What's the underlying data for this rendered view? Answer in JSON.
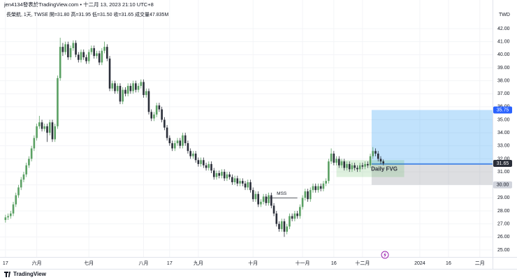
{
  "chart_data": {
    "type": "candlestick",
    "header": "jen4134發表於TradingView.com • 十二月 13, 2023 21:10 UTC+8",
    "subtitle": "長榮航, 1天, TWSE 開=31.80 高=31.95 低=31.50 收=31.65 成交量47.835M",
    "currency": "TWD",
    "footer": "TradingView",
    "up_color": "#5aa063",
    "down_color": "#2a2e39",
    "grid": true,
    "xlim": [
      -2.1,
      186.9
    ],
    "xticks": [
      {
        "value": 0,
        "label": "17"
      },
      {
        "value": 12,
        "label": "六月"
      },
      {
        "value": 32,
        "label": "七月"
      },
      {
        "value": 53,
        "label": "八月"
      },
      {
        "value": 63,
        "label": "17"
      },
      {
        "value": 74,
        "label": "九月"
      },
      {
        "value": 95,
        "label": "十月"
      },
      {
        "value": 114,
        "label": "十一月"
      },
      {
        "value": 126,
        "label": "16"
      },
      {
        "value": 137,
        "label": "十二月"
      },
      {
        "value": 159,
        "label": "2024"
      },
      {
        "value": 170,
        "label": "16"
      },
      {
        "value": 182,
        "label": "二月"
      }
    ],
    "ylim": [
      24.46,
      44.2
    ],
    "yticks": [
      {
        "value": 25,
        "label": "25.00"
      },
      {
        "value": 26,
        "label": "26.00"
      },
      {
        "value": 27,
        "label": "27.00"
      },
      {
        "value": 28,
        "label": "28.00"
      },
      {
        "value": 29,
        "label": "29.00"
      },
      {
        "value": 30,
        "label": "30.00"
      },
      {
        "value": 31,
        "label": "31.00"
      },
      {
        "value": 32,
        "label": "32.00"
      },
      {
        "value": 33,
        "label": "33.00"
      },
      {
        "value": 34,
        "label": "34.00"
      },
      {
        "value": 35,
        "label": "35.00"
      },
      {
        "value": 36,
        "label": "36.00"
      },
      {
        "value": 37,
        "label": "37.00"
      },
      {
        "value": 38,
        "label": "38.00"
      },
      {
        "value": 39,
        "label": "39.00"
      },
      {
        "value": 40,
        "label": "40.00"
      },
      {
        "value": 41,
        "label": "41.00"
      },
      {
        "value": 42,
        "label": "42.00"
      }
    ],
    "candles": [
      [
        27.3,
        27.7,
        27.1,
        27.5
      ],
      [
        27.5,
        27.8,
        27.3,
        27.6
      ],
      [
        27.6,
        28.0,
        27.4,
        27.8
      ],
      [
        27.8,
        28.7,
        27.6,
        28.5
      ],
      [
        28.5,
        29.4,
        28.3,
        29.2
      ],
      [
        29.2,
        30.0,
        29.0,
        29.8
      ],
      [
        29.8,
        30.6,
        29.6,
        30.4
      ],
      [
        30.4,
        31.0,
        30.2,
        30.8
      ],
      [
        30.8,
        31.7,
        30.6,
        31.5
      ],
      [
        31.5,
        32.2,
        31.3,
        32.0
      ],
      [
        32.0,
        33.0,
        31.8,
        32.8
      ],
      [
        32.8,
        33.8,
        32.6,
        33.6
      ],
      [
        33.6,
        34.7,
        33.4,
        34.5
      ],
      [
        34.5,
        35.3,
        34.3,
        34.8
      ],
      [
        34.8,
        35.0,
        34.1,
        34.3
      ],
      [
        34.3,
        34.7,
        34.1,
        34.5
      ],
      [
        34.5,
        34.7,
        33.3,
        34.0
      ],
      [
        34.0,
        35.0,
        33.8,
        34.8
      ],
      [
        34.8,
        35.0,
        33.3,
        33.5
      ],
      [
        33.5,
        34.7,
        33.3,
        34.5
      ],
      [
        34.5,
        38.4,
        34.3,
        38.2
      ],
      [
        38.2,
        41.3,
        38.0,
        40.6
      ],
      [
        40.6,
        40.9,
        39.9,
        40.2
      ],
      [
        40.2,
        41.0,
        40.0,
        40.8
      ],
      [
        40.8,
        41.0,
        39.6,
        39.8
      ],
      [
        39.8,
        40.7,
        39.6,
        40.5
      ],
      [
        40.5,
        41.1,
        40.3,
        40.9
      ],
      [
        40.9,
        41.1,
        39.8,
        40.0
      ],
      [
        40.0,
        40.2,
        39.4,
        39.6
      ],
      [
        39.6,
        40.4,
        39.4,
        40.2
      ],
      [
        40.2,
        40.4,
        39.6,
        39.8
      ],
      [
        39.8,
        40.0,
        39.3,
        39.5
      ],
      [
        39.5,
        40.4,
        39.3,
        40.2
      ],
      [
        40.2,
        40.7,
        40.0,
        40.5
      ],
      [
        40.5,
        40.7,
        39.7,
        39.9
      ],
      [
        39.9,
        40.3,
        39.7,
        40.1
      ],
      [
        40.1,
        40.3,
        39.2,
        39.4
      ],
      [
        39.4,
        40.5,
        39.2,
        40.3
      ],
      [
        40.3,
        41.0,
        40.1,
        40.6
      ],
      [
        40.6,
        40.8,
        39.5,
        39.7
      ],
      [
        39.7,
        39.9,
        37.2,
        37.4
      ],
      [
        37.4,
        38.0,
        37.2,
        37.8
      ],
      [
        37.8,
        38.0,
        37.0,
        37.2
      ],
      [
        37.2,
        37.8,
        37.0,
        37.6
      ],
      [
        37.6,
        37.8,
        36.2,
        36.4
      ],
      [
        36.4,
        37.5,
        36.2,
        37.3
      ],
      [
        37.3,
        37.5,
        36.8,
        37.0
      ],
      [
        37.0,
        37.8,
        36.8,
        37.6
      ],
      [
        37.6,
        37.8,
        37.0,
        37.2
      ],
      [
        37.2,
        38.0,
        37.0,
        37.8
      ],
      [
        37.8,
        38.0,
        37.1,
        37.3
      ],
      [
        37.3,
        37.8,
        37.1,
        37.6
      ],
      [
        37.6,
        38.1,
        37.4,
        37.9
      ],
      [
        37.9,
        38.1,
        36.7,
        36.9
      ],
      [
        36.9,
        37.4,
        36.7,
        37.2
      ],
      [
        37.2,
        37.4,
        35.4,
        35.6
      ],
      [
        35.6,
        35.8,
        34.9,
        35.1
      ],
      [
        35.1,
        35.6,
        34.9,
        35.4
      ],
      [
        35.4,
        36.3,
        35.2,
        36.1
      ],
      [
        36.1,
        36.3,
        35.6,
        35.8
      ],
      [
        35.8,
        36.0,
        34.8,
        35.0
      ],
      [
        35.0,
        35.2,
        34.2,
        34.4
      ],
      [
        34.4,
        34.6,
        33.4,
        33.6
      ],
      [
        33.6,
        33.8,
        33.0,
        33.2
      ],
      [
        33.2,
        33.4,
        32.6,
        32.8
      ],
      [
        32.8,
        33.4,
        32.6,
        33.2
      ],
      [
        33.2,
        33.6,
        33.0,
        33.4
      ],
      [
        33.4,
        33.6,
        32.8,
        33.0
      ],
      [
        33.0,
        34.0,
        32.8,
        33.8
      ],
      [
        33.8,
        34.0,
        33.0,
        33.2
      ],
      [
        33.2,
        33.4,
        32.4,
        32.6
      ],
      [
        32.6,
        32.8,
        32.0,
        32.2
      ],
      [
        32.2,
        32.6,
        32.0,
        32.4
      ],
      [
        32.4,
        32.6,
        31.7,
        31.9
      ],
      [
        31.9,
        32.1,
        31.4,
        31.6
      ],
      [
        31.6,
        32.1,
        31.4,
        31.9
      ],
      [
        31.9,
        32.1,
        31.3,
        31.5
      ],
      [
        31.5,
        31.7,
        31.1,
        31.3
      ],
      [
        31.3,
        31.8,
        31.1,
        31.6
      ],
      [
        31.6,
        31.8,
        30.9,
        31.1
      ],
      [
        31.1,
        31.3,
        30.4,
        30.6
      ],
      [
        30.6,
        31.1,
        30.4,
        30.9
      ],
      [
        30.9,
        31.1,
        30.5,
        30.7
      ],
      [
        30.7,
        31.2,
        30.5,
        31.0
      ],
      [
        31.0,
        31.2,
        30.3,
        30.5
      ],
      [
        30.5,
        31.0,
        30.3,
        30.8
      ],
      [
        30.8,
        31.0,
        30.4,
        30.6
      ],
      [
        30.6,
        30.8,
        30.0,
        30.2
      ],
      [
        30.2,
        30.7,
        30.0,
        30.5
      ],
      [
        30.5,
        30.7,
        29.9,
        30.1
      ],
      [
        30.1,
        30.5,
        29.9,
        30.3
      ],
      [
        30.3,
        30.5,
        29.9,
        30.1
      ],
      [
        30.1,
        30.3,
        29.6,
        29.8
      ],
      [
        29.8,
        30.4,
        29.6,
        30.2
      ],
      [
        30.2,
        30.4,
        29.4,
        29.6
      ],
      [
        29.6,
        29.8,
        28.7,
        28.9
      ],
      [
        28.9,
        29.5,
        28.7,
        29.3
      ],
      [
        29.3,
        29.5,
        28.3,
        28.5
      ],
      [
        28.5,
        28.9,
        28.3,
        28.7
      ],
      [
        28.7,
        29.3,
        28.5,
        29.1
      ],
      [
        29.1,
        29.3,
        28.4,
        28.6
      ],
      [
        28.6,
        29.4,
        28.4,
        29.2
      ],
      [
        29.2,
        29.4,
        28.2,
        28.4
      ],
      [
        28.4,
        28.6,
        27.6,
        27.8
      ],
      [
        27.8,
        28.0,
        26.8,
        27.0
      ],
      [
        27.0,
        27.2,
        26.4,
        26.6
      ],
      [
        26.6,
        27.4,
        26.4,
        27.2
      ],
      [
        27.2,
        27.4,
        26.0,
        26.4
      ],
      [
        26.4,
        27.0,
        26.2,
        26.8
      ],
      [
        26.8,
        27.8,
        26.6,
        27.6
      ],
      [
        27.6,
        27.8,
        27.2,
        27.4
      ],
      [
        27.4,
        28.0,
        27.2,
        27.8
      ],
      [
        27.8,
        28.0,
        27.4,
        27.6
      ],
      [
        27.6,
        28.5,
        27.4,
        28.3
      ],
      [
        28.3,
        29.2,
        28.1,
        29.0
      ],
      [
        29.0,
        29.7,
        28.8,
        29.5
      ],
      [
        29.5,
        29.7,
        28.7,
        28.9
      ],
      [
        28.9,
        29.8,
        28.7,
        29.6
      ],
      [
        29.6,
        30.1,
        29.4,
        29.9
      ],
      [
        29.9,
        30.1,
        29.4,
        29.6
      ],
      [
        29.6,
        30.1,
        29.4,
        29.9
      ],
      [
        29.9,
        30.1,
        29.5,
        29.7
      ],
      [
        29.7,
        30.3,
        29.5,
        30.1
      ],
      [
        30.1,
        30.5,
        29.9,
        30.3
      ],
      [
        30.3,
        32.0,
        30.1,
        31.8
      ],
      [
        31.8,
        32.8,
        31.6,
        32.4
      ],
      [
        32.4,
        32.6,
        31.5,
        31.7
      ],
      [
        31.7,
        32.2,
        31.5,
        32.0
      ],
      [
        32.0,
        32.2,
        31.3,
        31.5
      ],
      [
        31.5,
        32.0,
        31.3,
        31.8
      ],
      [
        31.8,
        32.0,
        31.1,
        31.3
      ],
      [
        31.3,
        31.8,
        31.1,
        31.6
      ],
      [
        31.6,
        31.8,
        31.0,
        31.2
      ],
      [
        31.2,
        31.7,
        31.0,
        31.5
      ],
      [
        31.5,
        31.7,
        31.1,
        31.3
      ],
      [
        31.3,
        31.5,
        31.0,
        31.2
      ],
      [
        31.2,
        31.7,
        31.0,
        31.5
      ],
      [
        31.5,
        31.7,
        31.2,
        31.4
      ],
      [
        31.4,
        31.8,
        31.2,
        31.6
      ],
      [
        31.6,
        31.8,
        31.3,
        31.5
      ],
      [
        31.5,
        32.4,
        31.3,
        32.2
      ],
      [
        32.2,
        32.9,
        32.0,
        32.6
      ],
      [
        32.6,
        32.8,
        32.2,
        32.4
      ],
      [
        32.4,
        32.6,
        31.8,
        32.0
      ],
      [
        32.0,
        32.2,
        31.6,
        31.8
      ],
      [
        31.8,
        31.95,
        31.5,
        31.65
      ]
    ],
    "position": {
      "x": [
        140.5,
        186.9
      ],
      "target": {
        "value": 35.75,
        "label": "35.75"
      },
      "entry": 31.6,
      "stop": {
        "value": 30,
        "label": "30.00"
      }
    },
    "last_price": {
      "value": 31.65,
      "label": "31.65"
    },
    "mss": {
      "label": "MSS",
      "value": 29.0,
      "x": [
        100,
        112
      ]
    },
    "fvg": {
      "label": "Daily FVG",
      "x": [
        127,
        153
      ],
      "low": 30.6,
      "high": 31.9
    }
  }
}
